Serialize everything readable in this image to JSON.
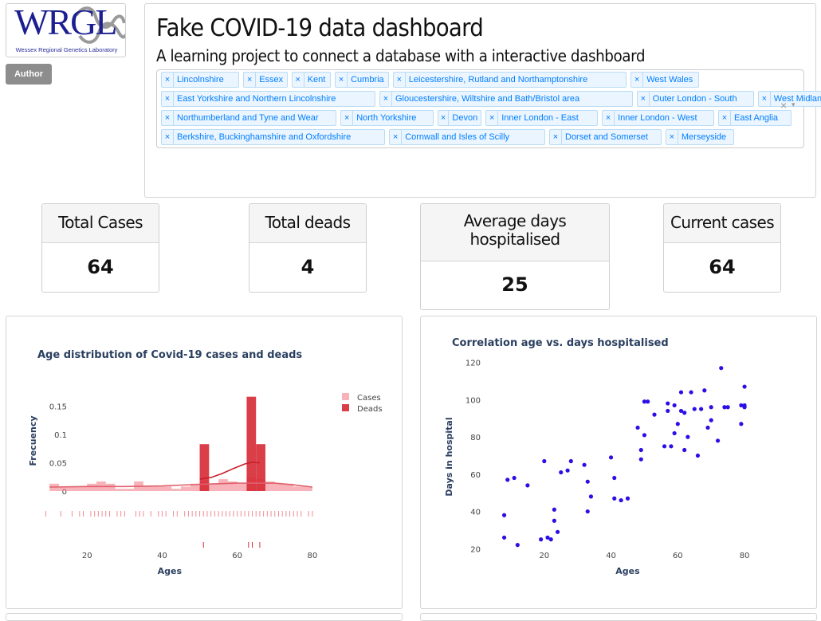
{
  "logo": {
    "letters": "WRGL",
    "subtitle": "Wessex Regional Genetics Laboratory"
  },
  "author_button": "Author",
  "header": {
    "title": "Fake COVID-19 data dashboard",
    "subtitle": "A learning project to connect a database with a interactive dashboard"
  },
  "region_select": {
    "clear_glyph": "×",
    "arrow_glyph": "▾",
    "remove_glyph": "×",
    "rows": [
      [
        "Lincolnshire",
        "Essex",
        "Kent",
        "Cumbria",
        "Leicestershire, Rutland and Northamptonshire",
        "West Wales"
      ],
      [
        "East Yorkshire and Northern Lincolnshire",
        "Gloucestershire, Wiltshire and Bath/Bristol area",
        "Outer London - South",
        "West Midlands"
      ],
      [
        "Northumberland and Tyne and Wear",
        "North Yorkshire",
        "Devon",
        "Inner London - East",
        "Inner London - West",
        "East Anglia"
      ],
      [
        "Berkshire, Buckinghamshire and Oxfordshire",
        "Cornwall and Isles of Scilly",
        "Dorset and Somerset",
        "Merseyside"
      ]
    ]
  },
  "stats": {
    "total_cases": {
      "label": "Total Cases",
      "value": "64"
    },
    "total_deads": {
      "label": "Total deads",
      "value": "4"
    },
    "avg_days": {
      "label1": "Average days",
      "label2": "hospitalised",
      "value": "25"
    },
    "current_cases": {
      "label": "Current cases",
      "value": "64"
    }
  },
  "colors": {
    "cases": "#f28b93",
    "deads": "#d62a35",
    "scatter": "#2b0fe6",
    "title_text": "#2a3f5f"
  },
  "chart_data": [
    {
      "type": "bar",
      "title": "Age distribution of Covid-19 cases and deads",
      "xlabel": "Ages",
      "ylabel": "Frecuency",
      "xticks": [
        20,
        40,
        60,
        80
      ],
      "yticks": [
        0,
        0.05,
        0.1,
        0.15
      ],
      "xlim": [
        7,
        83
      ],
      "ylim": [
        0,
        0.175
      ],
      "legend_position": "top-right",
      "series": [
        {
          "name": "Cases",
          "bins": [
            [
              10,
              12.5,
              0.013
            ],
            [
              12.5,
              15,
              0.008
            ],
            [
              15,
              17.5,
              0.008
            ],
            [
              17.5,
              20,
              0.008
            ],
            [
              20,
              22.5,
              0.013
            ],
            [
              22.5,
              25,
              0.017
            ],
            [
              25,
              27.5,
              0.013
            ],
            [
              27.5,
              30,
              0.004
            ],
            [
              30,
              32.5,
              0.004
            ],
            [
              32.5,
              35,
              0.017
            ],
            [
              35,
              37.5,
              0.008
            ],
            [
              37.5,
              40,
              0.008
            ],
            [
              40,
              42.5,
              0.008
            ],
            [
              42.5,
              45,
              0.004
            ],
            [
              45,
              47.5,
              0.008
            ],
            [
              47.5,
              50,
              0.013
            ],
            [
              50,
              52.5,
              0.017
            ],
            [
              52.5,
              55,
              0.013
            ],
            [
              55,
              57.5,
              0.021
            ],
            [
              57.5,
              60,
              0.017
            ],
            [
              60,
              62.5,
              0.013
            ],
            [
              62.5,
              65,
              0.025
            ],
            [
              65,
              67.5,
              0.021
            ],
            [
              67.5,
              70,
              0.017
            ],
            [
              70,
              72.5,
              0.013
            ],
            [
              72.5,
              75,
              0.013
            ],
            [
              75,
              77.5,
              0.008
            ],
            [
              77.5,
              80,
              0.008
            ]
          ],
          "curve": [
            [
              10,
              0.007
            ],
            [
              20,
              0.008
            ],
            [
              30,
              0.008
            ],
            [
              40,
              0.009
            ],
            [
              50,
              0.012
            ],
            [
              60,
              0.014
            ],
            [
              65,
              0.014
            ],
            [
              70,
              0.014
            ],
            [
              75,
              0.011
            ],
            [
              80,
              0.007
            ]
          ],
          "rug": [
            9,
            13,
            16,
            18,
            19,
            21,
            22,
            23,
            24,
            25,
            26,
            28,
            29,
            30,
            33,
            34,
            35,
            37,
            39,
            40,
            41,
            43,
            44,
            46,
            47,
            48,
            49,
            50,
            51,
            52,
            53,
            54,
            55,
            56,
            57,
            58,
            59,
            60,
            61,
            62,
            63,
            64,
            65,
            66,
            67,
            68,
            69,
            70,
            71,
            72,
            73,
            74,
            75,
            76,
            77,
            79,
            80
          ]
        },
        {
          "name": "Deads",
          "bins": [
            [
              50,
              52.5,
              0.083
            ],
            [
              62.5,
              65,
              0.167
            ],
            [
              65,
              67.5,
              0.083
            ]
          ],
          "curve": [
            [
              50,
              0.021
            ],
            [
              53,
              0.024
            ],
            [
              56,
              0.031
            ],
            [
              59,
              0.04
            ],
            [
              62,
              0.048
            ],
            [
              64,
              0.051
            ],
            [
              66,
              0.05
            ]
          ],
          "rug": [
            51,
            63,
            64,
            66
          ]
        }
      ]
    },
    {
      "type": "scatter",
      "title": "Correlation age vs. days hospitalised",
      "xlabel": "Ages",
      "ylabel": "Days in hospital",
      "xticks": [
        20,
        40,
        60,
        80
      ],
      "yticks": [
        20,
        40,
        60,
        80,
        100,
        120
      ],
      "xlim": [
        5,
        85
      ],
      "ylim": [
        15,
        125
      ],
      "points": [
        [
          8,
          38
        ],
        [
          8,
          26
        ],
        [
          9,
          57
        ],
        [
          11,
          58
        ],
        [
          12,
          22
        ],
        [
          15,
          54
        ],
        [
          19,
          25
        ],
        [
          20,
          67
        ],
        [
          21,
          26
        ],
        [
          22,
          25
        ],
        [
          23,
          41
        ],
        [
          23,
          35
        ],
        [
          24,
          29
        ],
        [
          25,
          61
        ],
        [
          27,
          62
        ],
        [
          28,
          67
        ],
        [
          32,
          65
        ],
        [
          33,
          56
        ],
        [
          33,
          40
        ],
        [
          34,
          48
        ],
        [
          40,
          69
        ],
        [
          41,
          58
        ],
        [
          41,
          47
        ],
        [
          43,
          46
        ],
        [
          45,
          47
        ],
        [
          48,
          85
        ],
        [
          49,
          68
        ],
        [
          49,
          73
        ],
        [
          50,
          81
        ],
        [
          50,
          99
        ],
        [
          51,
          99
        ],
        [
          53,
          92
        ],
        [
          56,
          75
        ],
        [
          57,
          98
        ],
        [
          57,
          94
        ],
        [
          58,
          75
        ],
        [
          59,
          97
        ],
        [
          59,
          82
        ],
        [
          60,
          87
        ],
        [
          61,
          94
        ],
        [
          61,
          104
        ],
        [
          62,
          93
        ],
        [
          62,
          73
        ],
        [
          63,
          80
        ],
        [
          64,
          104
        ],
        [
          65,
          95
        ],
        [
          66,
          70
        ],
        [
          67,
          95
        ],
        [
          68,
          105
        ],
        [
          69,
          85
        ],
        [
          70,
          89
        ],
        [
          70,
          96
        ],
        [
          72,
          78
        ],
        [
          73,
          117
        ],
        [
          74,
          96
        ],
        [
          75,
          96
        ],
        [
          79,
          87
        ],
        [
          79,
          97
        ],
        [
          80,
          107
        ],
        [
          80,
          97
        ],
        [
          80,
          96
        ]
      ]
    }
  ]
}
